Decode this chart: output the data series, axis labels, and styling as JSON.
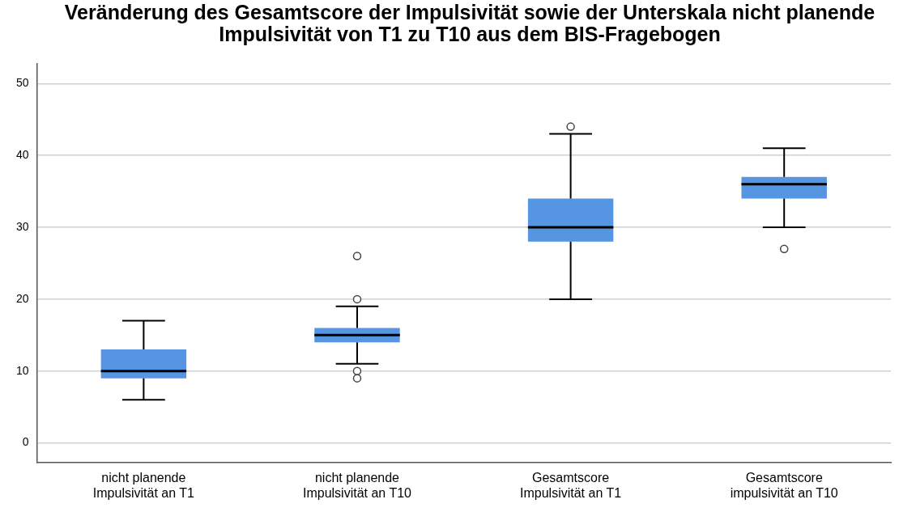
{
  "chart_data": {
    "type": "box",
    "title": "Veränderung des Gesamtscore der Impulsivität sowie der Unterskala nicht planende Impulsivität von T1 zu T10 aus dem BIS-Fragebogen",
    "categories": [
      "nicht planende Impulsivität an T1",
      "nicht planende Impulsivität an T10",
      "Gesamtscore Impulsivität an T1",
      "Gesamtscore impulsivität an T10"
    ],
    "boxes": [
      {
        "low": 6,
        "q1": 9,
        "median": 10,
        "q3": 13,
        "high": 17
      },
      {
        "low": 11,
        "q1": 14,
        "median": 15,
        "q3": 16,
        "high": 19,
        "outliers": [
          20,
          10,
          9,
          26
        ]
      },
      {
        "low": 20,
        "q1": 28,
        "median": 30,
        "q3": 34,
        "high": 43,
        "outliers": [
          44
        ]
      },
      {
        "low": 30,
        "q1": 34,
        "median": 36,
        "q3": 37,
        "high": 41,
        "outliers": [
          27
        ]
      }
    ],
    "color": "#5595e1",
    "ylim": [
      -2.7,
      52.8
    ],
    "yticks": [
      0,
      10,
      20,
      30,
      40,
      50
    ],
    "grid": "y",
    "legend": false
  }
}
